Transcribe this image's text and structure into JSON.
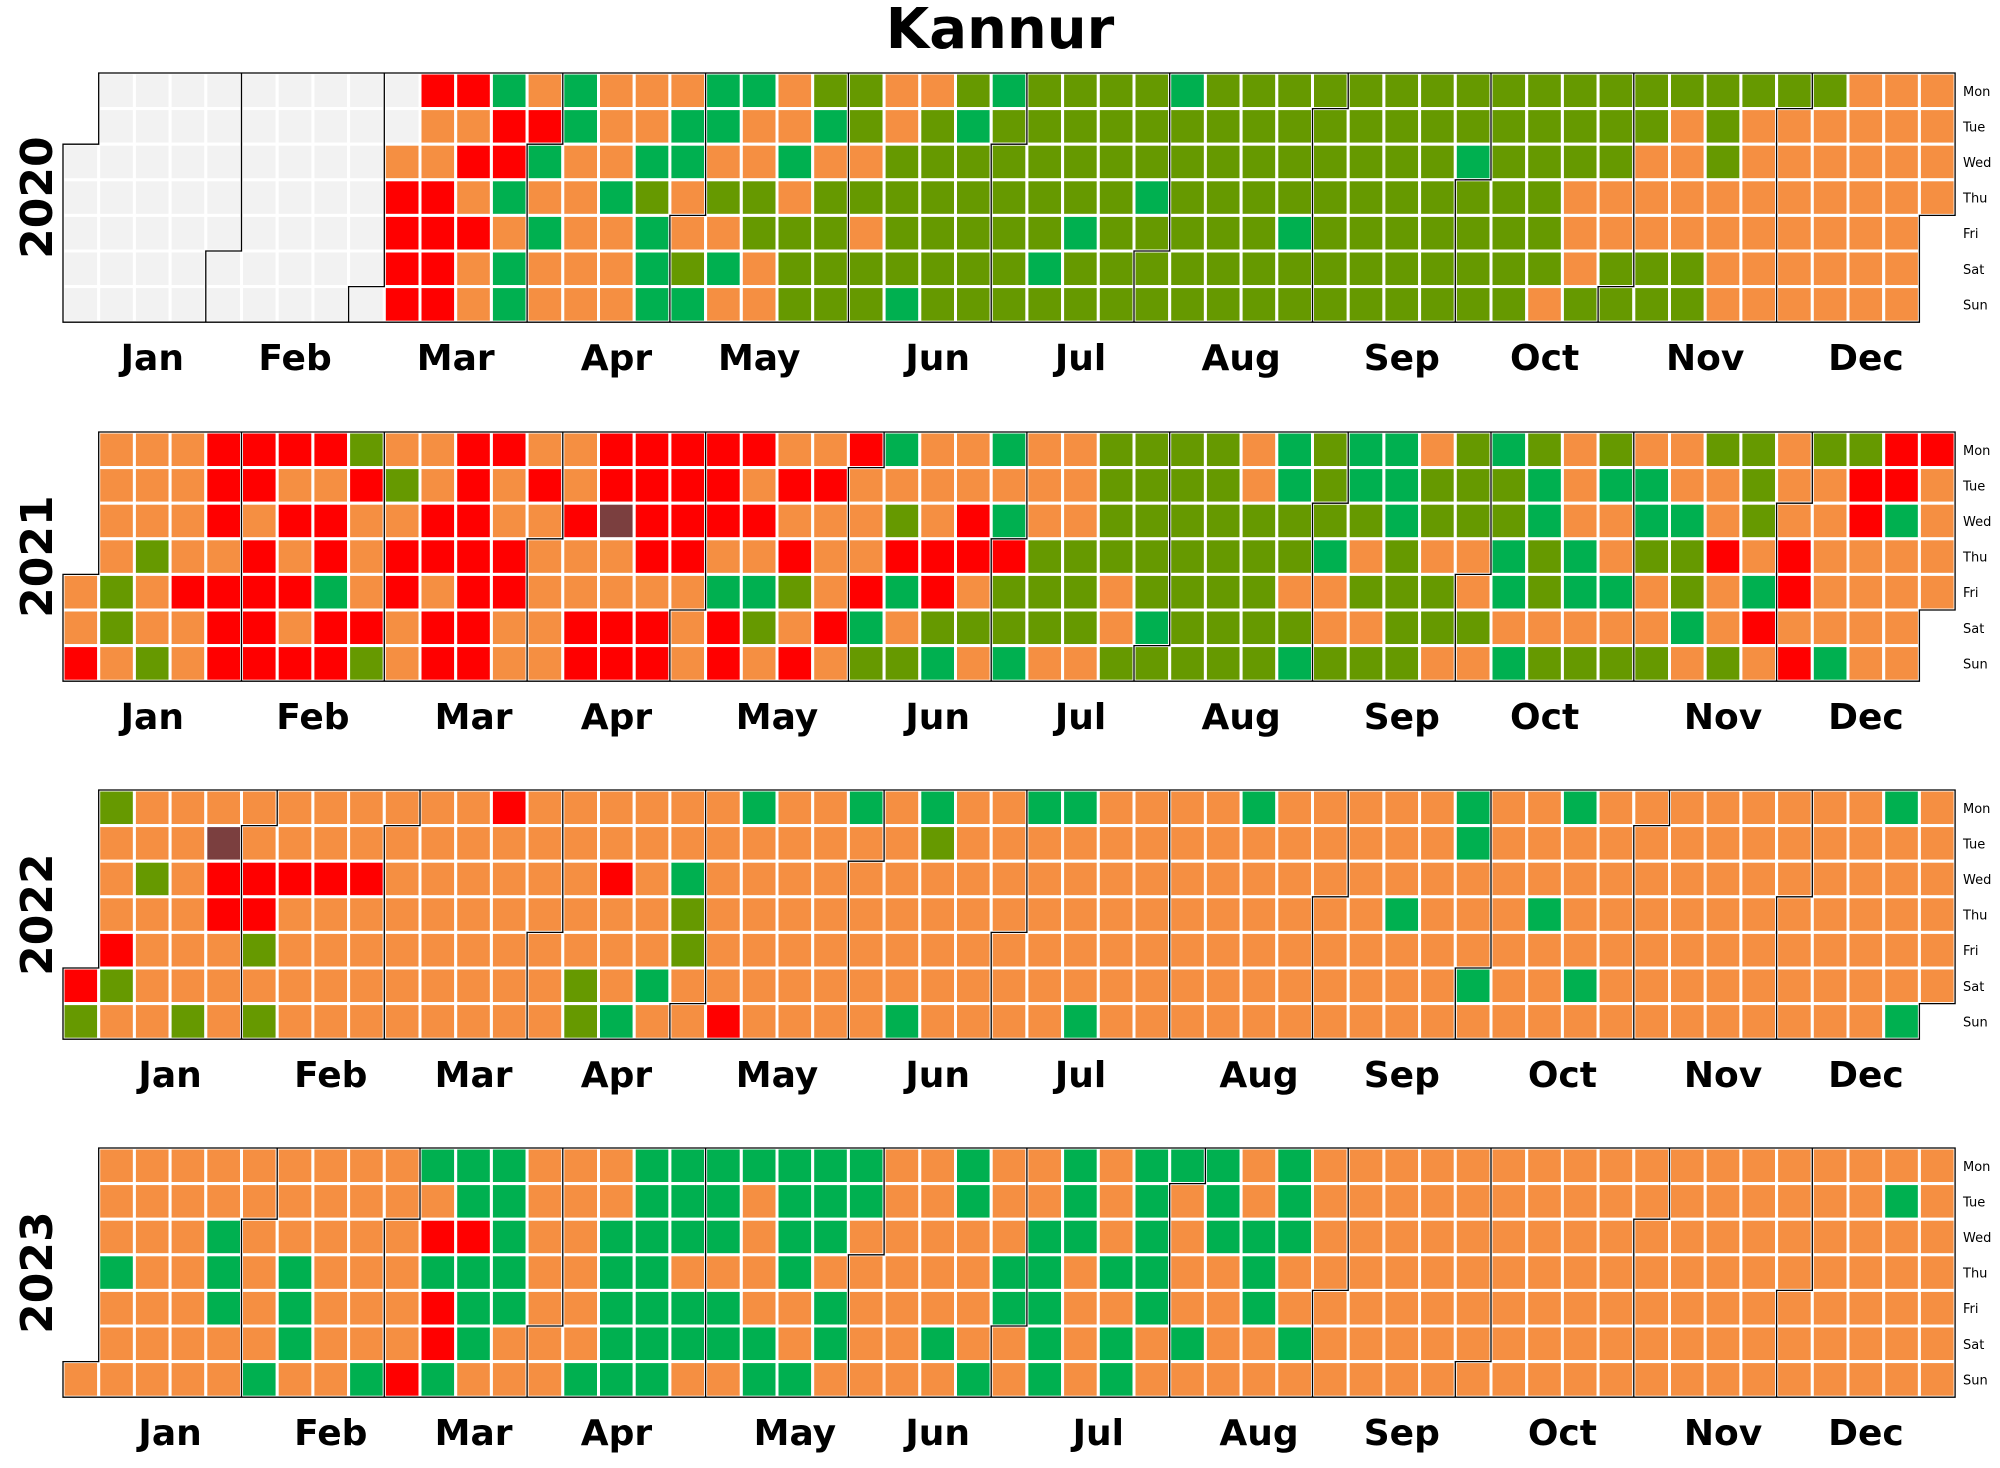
{
  "chart_data": {
    "type": "heatmap",
    "subtype": "calendar",
    "title": "Kannur",
    "weekday_labels": [
      "Mon",
      "Tue",
      "Wed",
      "Thu",
      "Fri",
      "Sat",
      "Sun"
    ],
    "month_labels": [
      "Jan",
      "Feb",
      "Mar",
      "Apr",
      "May",
      "Jun",
      "Jul",
      "Aug",
      "Sep",
      "Oct",
      "Nov",
      "Dec"
    ],
    "categories": [
      {
        "code": "0",
        "color": "#f2f2f2",
        "meaning": "no data"
      },
      {
        "code": "G",
        "color": "#00b050"
      },
      {
        "code": "Y",
        "color": "#669900"
      },
      {
        "code": "O",
        "color": "#f58f42"
      },
      {
        "code": "R",
        "color": "#ff0000"
      },
      {
        "code": "B",
        "color": "#7b3f3f"
      }
    ],
    "years": [
      {
        "year": "2020",
        "rows": [
          "000000000RRGOGOOOGGOYYOOYGYYYYGYYYYYYYYYYYYYYYYYYOOOOOOOOR",
          "000000000OORRGOOGGOOGYOYGYYYYYYYYYYYYYYYYYYYOYOOOOOOOOOOOR",
          "000000000OORRGOOGGOOGOOYYYYYYYYYYYYYYYYGYYYYOOYOOOOOOOOOBG",
          "000000000RROGOOGYOYYOYYYYYYYYYGYYYYYYYYYYYOOOOOOOOOOOOOOOG",
          "000000000RRROGOOGOOYYYOYYYYYGYYYYYGYYYYYYYOOOOOOOOOOOOOOR",
          "000000000RROGOOOGYGOYYYYYYYGYYYYYYYYYYYYYYOYYYOOOOOOOOOOO",
          "000000000RROGOOOGGOOYYYGYYYYYYYYYYYYYYYYYOYYYYOOOOOOOOOOR"
        ]
      },
      {
        "year": "2021",
        "rows": [
          "OOORRRRYOORROORRRRROORGOOGOOYYYYOGYGGOYGYOYOOYYOYYRR",
          "OOORROORYORORORRRRORROOOOOOOYYYYOGYGGYYYGOGGOOYOORR",
          "OOORORROORROORBRRRROOOYORGOOYYYYYYYYGYYYGOOGGOYOORG",
          "OYOORORORRRROOORROOROORRRRYYYYYYYYGOYOOGYGOYYROR",
          "OYORRRRGORORROOOOOGGYORGROYYYOYYYYOOYYYOGYGGOYOGR",
          "OYOORRORRORROORRRORYORGOYYYYYOGYYYYOOYYYOOOOOGOR",
          "ROYORRRRYORROORRROROROYYGOGOOYYYYYGYYYOOGYYYYOYORG"
        ]
      },
      {
        "year": "2022",
        "rows": [
          "YOOOOOOOOOOROOOOOOGOOGOGOOGGOOOOGOOOOOGOOGOOOOOOOOGOOOOOO",
          "OOOBOOOOOOOOOOOOOOOOOOOYOOOOOOOOOOOOOOGOOOOOOOOOOOOOOOOOO",
          "OYORRRRROOOOOOROGOOOOOOOOOOOOOOOOOOOOOOOOOOOOOOOOOOOOOOO",
          "OOORROOOOOOOOOOOYOOOOOOOOOOOOOOOOOOOGOOOGOOOOOOOOOOOOOOO",
          "ROOOYOOOOOOOOOOOYOOOOOOOOOOOOOOOOOOOOOOOOOOOOOOOOOOOOOOO",
          "RYOOOOOOOOOOOOYOGOOOOOOOOOOOOOOOOOOOOOOGOOGOOOOOOOOOOOOO",
          "YOOYOYOOOOOOOOYGOOROOOOGOOOOGOOOOOOOOOOOOOOOOOOOOOOGOOOOOO"
        ]
      },
      {
        "year": "2023",
        "rows": [
          "OOOOOOOOOGGGOOOGGGGGGGOOGOOGOGGGOGOOOOOOOOOOOOOOOOOOOOOO",
          "OOOOOOOOOOGGOOOGGGOGGGOOGOOGOGOGOGOOOOOOOOOOOOOOOOGOOOOO",
          "OOOGOOOOORRGOOGGGGOGGOOOOOGGOGOGGGOOOOOOOOOOOOOOOOOOOOOO",
          "GOOGOGOOOGGGOOGGOOOGOOOOOGGOGGOOGOOOOOOOOOOOOOOOOOOOOOOO",
          "OOOGOGOOORGGOOGGGGOOGOOOOGGOOGOOGOOOOOOOOOOOOOOOOOOOOOOO",
          "OOOOOGOOORGOOOGGGGGOGOOGOOGOGOGOOGOOOOOOOOOOOOOOOOOOOOOO",
          "OOOOOGOOGRGOOOGGGOOGGOOOOGOGOGOOOOOOOOOOOOOOOOOOOOOOOOO"
        ]
      }
    ]
  }
}
